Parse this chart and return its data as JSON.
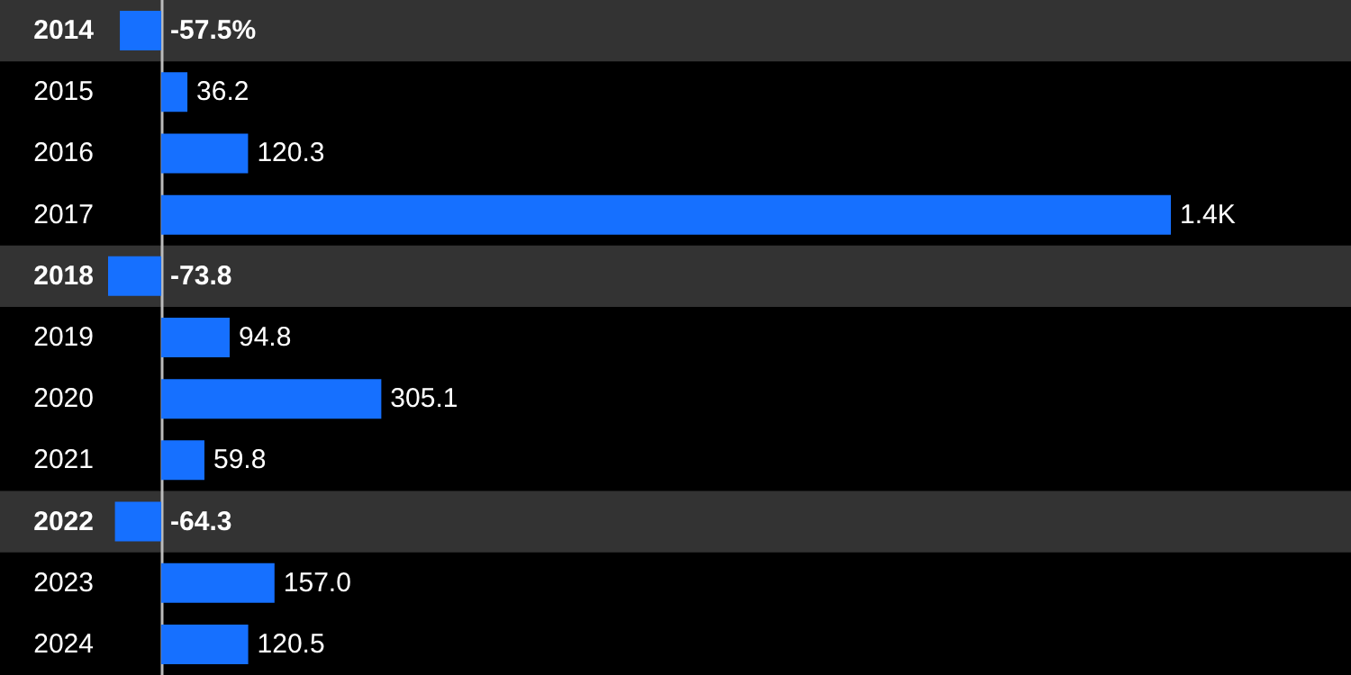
{
  "chart_data": {
    "type": "bar",
    "orientation": "horizontal",
    "categories": [
      "2014",
      "2015",
      "2016",
      "2017",
      "2018",
      "2019",
      "2020",
      "2021",
      "2022",
      "2023",
      "2024"
    ],
    "values": [
      -57.5,
      36.2,
      120.3,
      1400,
      -73.8,
      94.8,
      305.1,
      59.8,
      -64.3,
      157.0,
      120.5
    ],
    "color": "#1670ff",
    "value_labels": [
      "-57.5%",
      "36.2",
      "120.3",
      "1.4K",
      "-73.8",
      "94.8",
      "305.1",
      "59.8",
      "-64.3",
      "157.0",
      "120.5"
    ],
    "bands": [
      {
        "axis": "y",
        "from": "2014",
        "to": "2014",
        "color": "#333333"
      },
      {
        "axis": "y",
        "from": "2018",
        "to": "2018",
        "color": "#333333"
      },
      {
        "axis": "y",
        "from": "2022",
        "to": "2022",
        "color": "#333333"
      }
    ],
    "grid": false
  }
}
